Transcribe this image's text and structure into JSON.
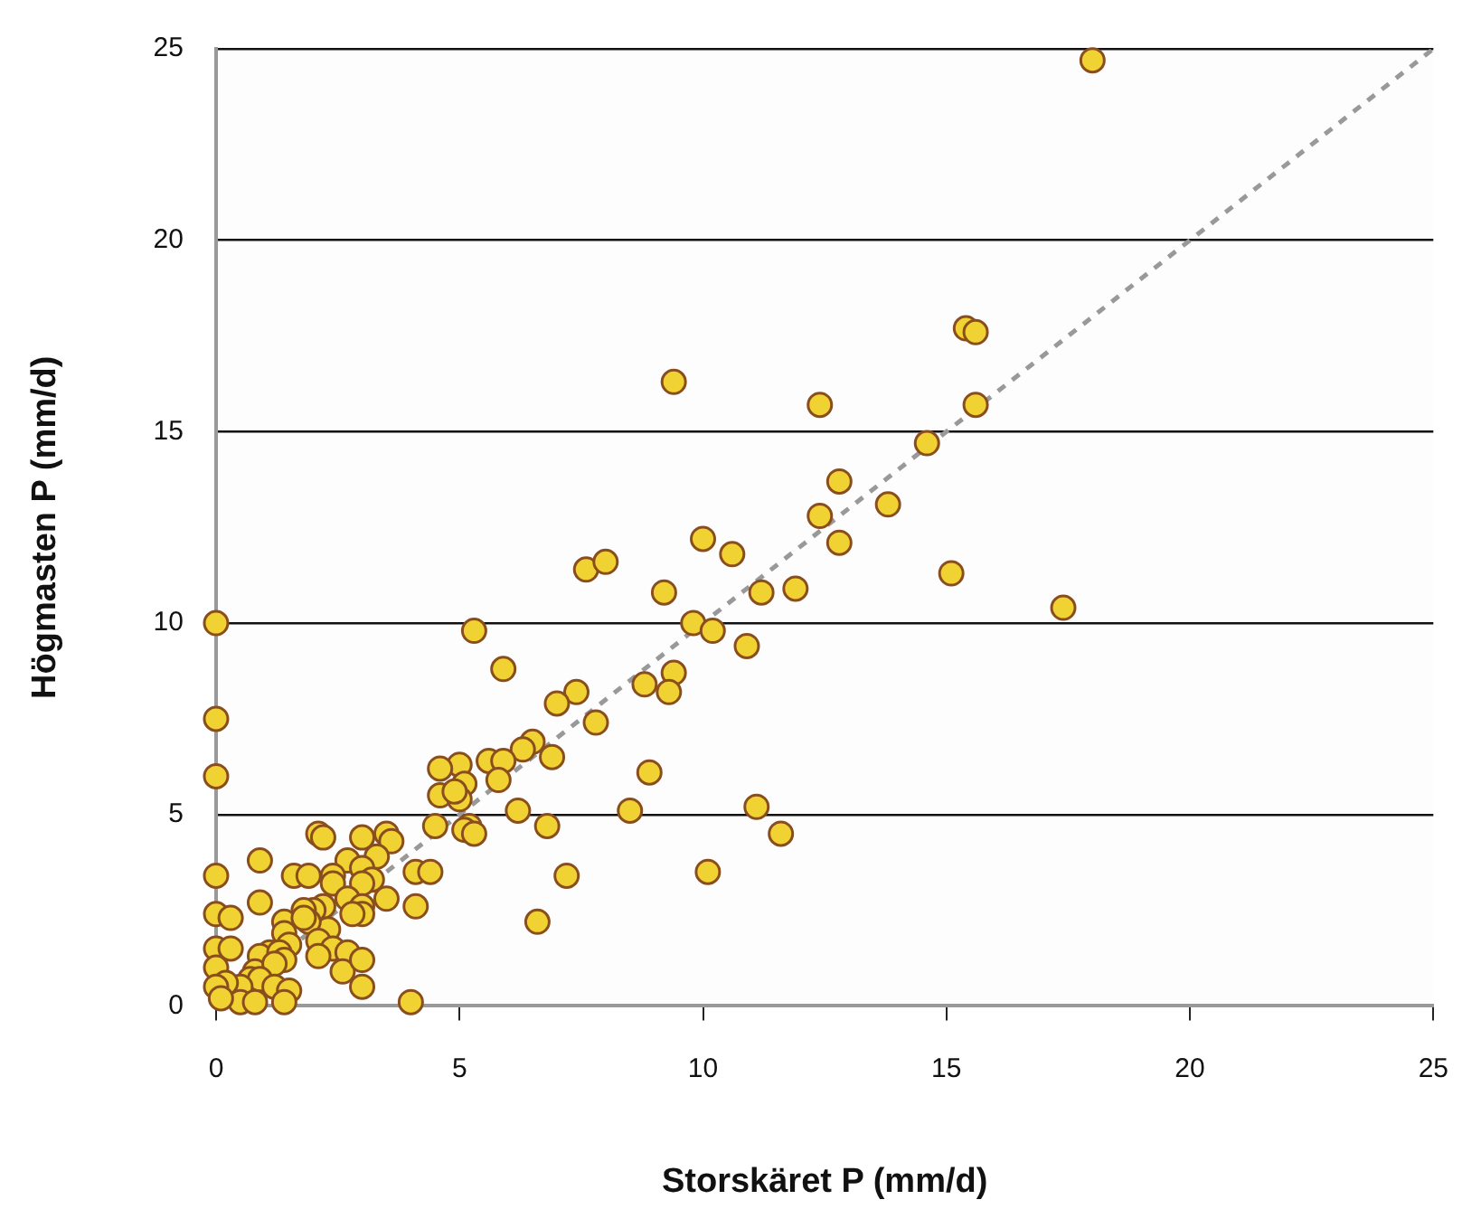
{
  "chart_data": {
    "type": "scatter",
    "xlabel": "Storskäret P (mm/d)",
    "ylabel": "Högmasten P (mm/d)",
    "xlim": [
      0,
      25
    ],
    "ylim": [
      0,
      25
    ],
    "xticks": [
      0,
      5,
      10,
      15,
      20,
      25
    ],
    "yticks": [
      0,
      5,
      10,
      15,
      20,
      25
    ],
    "grid": "y",
    "series": [
      {
        "color": "#f0d232",
        "marker": "circle",
        "x": [
          18.0,
          9.4,
          15.4,
          15.6,
          12.4,
          15.6,
          14.6,
          12.8,
          13.8,
          12.4,
          12.8,
          10.0,
          10.6,
          7.6,
          8.0,
          15.1,
          9.2,
          11.2,
          11.9,
          17.4,
          9.8,
          10.2,
          5.3,
          10.9,
          5.9,
          9.4,
          8.8,
          9.3,
          7.4,
          7.0,
          7.8,
          6.5,
          6.3,
          6.9,
          5.6,
          5.9,
          5.8,
          5.0,
          4.6,
          4.6,
          5.1,
          5.0,
          4.9,
          8.9,
          6.2,
          8.5,
          11.1,
          11.6,
          4.5,
          6.8,
          5.2,
          5.1,
          5.3,
          4.1,
          4.4,
          7.2,
          10.1,
          4.1,
          6.6,
          0,
          0,
          0,
          2.1,
          2.2,
          3.0,
          3.5,
          3.6,
          3.3,
          2.7,
          0.9,
          1.6,
          1.9,
          0,
          2.4,
          2.4,
          3.0,
          3.2,
          3.0,
          3.5,
          2.7,
          3.0,
          2.2,
          2.0,
          1.8,
          0.9,
          0,
          0.3,
          3.0,
          2.8,
          1.4,
          2.3,
          1.9,
          1.8,
          1.4,
          1.5,
          2.1,
          2.4,
          2.1,
          2.7,
          2.6,
          3.0,
          0,
          0.3,
          0,
          1.1,
          0.9,
          0.8,
          1.3,
          1.4,
          1.2,
          0.7,
          0.9,
          0.5,
          0.2,
          1.2,
          1.5,
          3.0,
          0,
          0.5,
          0.8,
          1.4,
          4.0,
          0.1
        ],
        "values": [
          24.7,
          16.3,
          17.7,
          17.6,
          15.7,
          15.7,
          14.7,
          13.7,
          13.1,
          12.8,
          12.1,
          12.2,
          11.8,
          11.4,
          11.6,
          11.3,
          10.8,
          10.8,
          10.9,
          10.4,
          10.0,
          9.8,
          9.8,
          9.4,
          8.8,
          8.7,
          8.4,
          8.2,
          8.2,
          7.9,
          7.4,
          6.9,
          6.7,
          6.5,
          6.4,
          6.4,
          5.9,
          6.3,
          6.2,
          5.5,
          5.8,
          5.4,
          5.6,
          6.1,
          5.1,
          5.1,
          5.2,
          4.5,
          4.7,
          4.7,
          4.7,
          4.6,
          4.5,
          3.5,
          3.5,
          3.4,
          3.5,
          2.6,
          2.2,
          10.0,
          7.5,
          6.0,
          4.5,
          4.4,
          4.4,
          4.5,
          4.3,
          3.9,
          3.8,
          3.8,
          3.4,
          3.4,
          3.4,
          3.4,
          3.2,
          3.6,
          3.3,
          3.2,
          2.8,
          2.8,
          2.6,
          2.6,
          2.5,
          2.5,
          2.7,
          2.4,
          2.3,
          2.4,
          2.4,
          2.2,
          2.0,
          2.2,
          2.3,
          1.9,
          1.6,
          1.7,
          1.5,
          1.3,
          1.4,
          0.9,
          1.2,
          1.5,
          1.5,
          1.0,
          1.4,
          1.3,
          0.9,
          1.4,
          1.2,
          1.1,
          0.7,
          0.7,
          0.5,
          0.6,
          0.5,
          0.4,
          0.5,
          0.5,
          0.1,
          0.1,
          0.1,
          0.1,
          0.2
        ]
      },
      {
        "type": "line",
        "color": "#999999",
        "line_style": "dashed",
        "x": [
          0,
          25
        ],
        "values": [
          0,
          25
        ]
      }
    ]
  }
}
